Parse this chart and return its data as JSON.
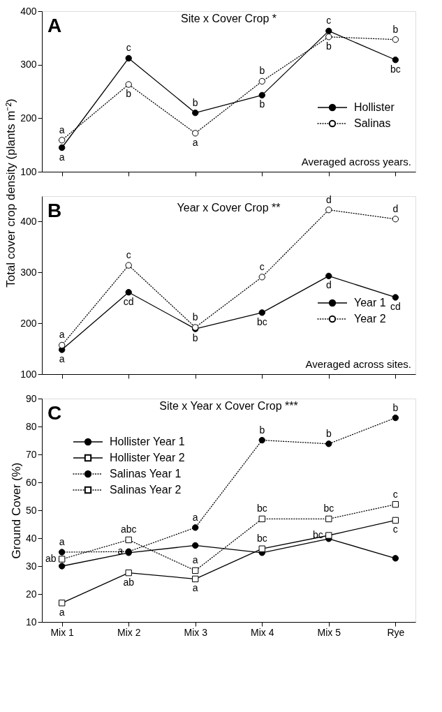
{
  "chart_data": [
    {
      "type": "line",
      "title": "Site x Cover Crop *",
      "ylabel": "Total cover crop density (plants m⁻²)",
      "categories": [
        null,
        null,
        null,
        null,
        null,
        null
      ],
      "ylim": [
        100,
        400
      ],
      "yticks": [
        100,
        200,
        300,
        400
      ],
      "tick_labels": "y",
      "legend": "right",
      "series": [
        {
          "name": "Hollister",
          "color": "#000000",
          "marker": "circle",
          "line_style": "solid",
          "values": [
            145,
            312,
            210,
            243,
            363,
            309
          ],
          "value_labels": [
            "a",
            "c",
            "b",
            "b",
            "c",
            "bc"
          ]
        },
        {
          "name": "Salinas",
          "color": "#000000",
          "marker": "circle",
          "line_style": "dotted",
          "values": [
            159,
            263,
            172,
            269,
            352,
            347
          ],
          "value_labels": [
            "a",
            "b",
            "a",
            "b",
            "b",
            "b"
          ]
        }
      ],
      "annotations": [
        "A",
        "Averaged across years."
      ]
    },
    {
      "type": "line",
      "title": "Year x Cover Crop **",
      "categories": [
        null,
        null,
        null,
        null,
        null,
        null
      ],
      "ylim": [
        100,
        450
      ],
      "yticks": [
        100,
        200,
        300,
        400
      ],
      "tick_labels": "y",
      "legend": "right",
      "series": [
        {
          "name": "Year 1",
          "color": "#000000",
          "marker": "circle",
          "line_style": "solid",
          "values": [
            148,
            261,
            189,
            221,
            293,
            251
          ],
          "value_labels": [
            "a",
            "cd",
            "b",
            "bc",
            "d",
            "cd"
          ]
        },
        {
          "name": "Year 2",
          "color": "#000000",
          "marker": "circle",
          "line_style": "dotted",
          "values": [
            157,
            314,
            192,
            291,
            423,
            405
          ],
          "value_labels": [
            "a",
            "c",
            "b",
            "c",
            "d",
            "d"
          ]
        }
      ],
      "annotations": [
        "B",
        "Averaged across sites."
      ]
    },
    {
      "type": "line",
      "title": "Site x Year x Cover Crop ***",
      "ylabel": "Ground Cover (%)",
      "categories": [
        "Mix 1",
        "Mix 2",
        "Mix 3",
        "Mix 4",
        "Mix 5",
        "Rye"
      ],
      "ylim": [
        10,
        90
      ],
      "yticks": [
        10,
        20,
        30,
        40,
        50,
        60,
        70,
        80,
        90
      ],
      "legend": "top left",
      "series": [
        {
          "name": "Hollister Year 1",
          "color": "#000000",
          "marker": "circle",
          "line_style": "solid",
          "values": [
            30.0,
            34.8,
            37.4,
            34.8,
            39.8,
            32.8
          ]
        },
        {
          "name": "Hollister Year 2",
          "color": "#000000",
          "marker": "square",
          "line_style": "solid",
          "values": [
            16.8,
            27.6,
            25.4,
            36.2,
            41.0,
            46.4
          ],
          "value_labels": [
            "a",
            "ab",
            "a",
            "bc",
            "bc",
            "c"
          ]
        },
        {
          "name": "Salinas Year 1",
          "color": "#000000",
          "marker": "circle",
          "line_style": "dotted",
          "values": [
            35.0,
            35.2,
            43.8,
            75.1,
            73.8,
            83.1
          ],
          "value_labels": [
            "a",
            "a",
            "a",
            "b",
            "b",
            "b"
          ]
        },
        {
          "name": "Salinas Year 2",
          "color": "#000000",
          "marker": "square",
          "line_style": "dotted",
          "values": [
            32.5,
            39.4,
            28.4,
            46.9,
            46.9,
            52.1
          ],
          "value_labels": [
            "ab",
            "abc",
            "a",
            "bc",
            "bc",
            "c"
          ]
        }
      ],
      "annotations": [
        "C"
      ]
    }
  ]
}
